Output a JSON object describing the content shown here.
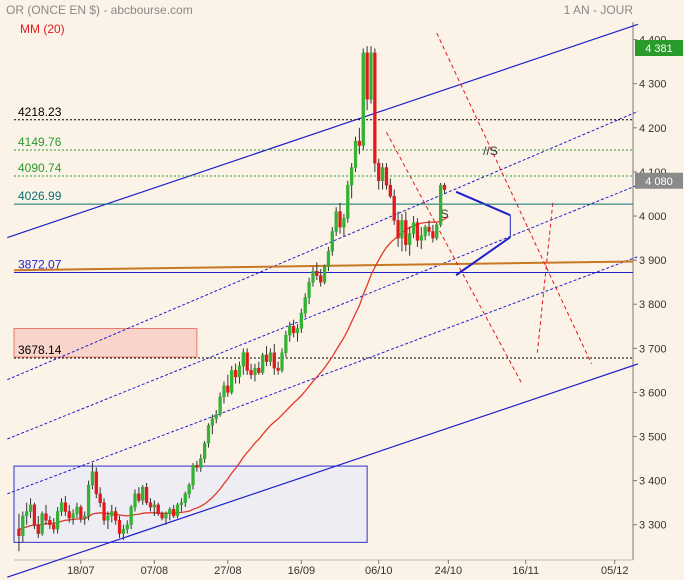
{
  "header": {
    "title": "OR (ONCE EN $) - abcbourse.com",
    "period": "1 AN - JOUR",
    "indicator": "MM (20)"
  },
  "colors": {
    "background": "#fcf3e8",
    "up": "#33b233",
    "down": "#e01a1a",
    "ma": "#e0392b",
    "channel": "#1f1fcc",
    "resistance": "#c87822",
    "current": "#2a9a2a",
    "last": "#8a8a8a"
  },
  "chart_data": {
    "type": "candlestick",
    "title": "OR (ONCE EN $) - abcbourse.com",
    "ylim": [
      3220,
      4440
    ],
    "y_ticks": [
      3300,
      3400,
      3500,
      3600,
      3700,
      3800,
      3900,
      4000,
      4100,
      4200,
      4300,
      4400
    ],
    "y_tick_labels": [
      "3 300",
      "3 400",
      "3 500",
      "3 600",
      "3 700",
      "3 800",
      "3 900",
      "4 000",
      "4 100",
      "4 200",
      "4 300",
      "4 400"
    ],
    "x_tick_labels": [
      "18/07",
      "07/08",
      "27/08",
      "16/09",
      "06/10",
      "24/10",
      "16/11",
      "05/12"
    ],
    "x_tick_index": [
      16,
      35,
      54,
      73,
      93,
      111,
      131,
      154
    ],
    "total_slots": 160,
    "price_badges": [
      {
        "label": "4 381",
        "value": 4381,
        "style": "current"
      },
      {
        "label": "4 080",
        "value": 4080,
        "style": "last"
      }
    ],
    "h_levels": [
      {
        "label": "4218.23",
        "value": 4218.23,
        "color": "#000000",
        "style": "dotted"
      },
      {
        "label": "4149.76",
        "value": 4149.76,
        "color": "#2a9a2a",
        "style": "dotted"
      },
      {
        "label": "4090.74",
        "value": 4090.74,
        "color": "#2a9a2a",
        "style": "dotted"
      },
      {
        "label": "4026.99",
        "value": 4026.99,
        "color": "#0a6f6f",
        "style": "solid"
      },
      {
        "label": "3872.07",
        "value": 3872.07,
        "color": "#2222cc",
        "style": "solid"
      },
      {
        "label": "3678.14",
        "value": 3678.14,
        "color": "#000000",
        "style": "dotted"
      }
    ],
    "annotations": [
      "//S",
      "S"
    ],
    "series": [
      {
        "name": "candles",
        "ohlc": [
          [
            3290,
            3325,
            3240,
            3275
          ],
          [
            3275,
            3330,
            3260,
            3320
          ],
          [
            3320,
            3350,
            3300,
            3330
          ],
          [
            3330,
            3360,
            3315,
            3345
          ],
          [
            3345,
            3350,
            3290,
            3300
          ],
          [
            3300,
            3320,
            3270,
            3280
          ],
          [
            3280,
            3330,
            3275,
            3325
          ],
          [
            3325,
            3345,
            3300,
            3310
          ],
          [
            3310,
            3320,
            3290,
            3300
          ],
          [
            3300,
            3315,
            3280,
            3290
          ],
          [
            3290,
            3340,
            3280,
            3330
          ],
          [
            3330,
            3360,
            3320,
            3350
          ],
          [
            3350,
            3365,
            3320,
            3330
          ],
          [
            3330,
            3345,
            3305,
            3315
          ],
          [
            3315,
            3335,
            3300,
            3325
          ],
          [
            3325,
            3350,
            3315,
            3340
          ],
          [
            3340,
            3345,
            3305,
            3315
          ],
          [
            3315,
            3330,
            3300,
            3320
          ],
          [
            3320,
            3400,
            3310,
            3390
          ],
          [
            3390,
            3440,
            3380,
            3420
          ],
          [
            3420,
            3430,
            3360,
            3370
          ],
          [
            3370,
            3385,
            3340,
            3350
          ],
          [
            3350,
            3360,
            3300,
            3310
          ],
          [
            3310,
            3330,
            3290,
            3320
          ],
          [
            3320,
            3345,
            3305,
            3330
          ],
          [
            3330,
            3340,
            3300,
            3310
          ],
          [
            3310,
            3320,
            3270,
            3280
          ],
          [
            3280,
            3300,
            3265,
            3290
          ],
          [
            3290,
            3310,
            3280,
            3300
          ],
          [
            3300,
            3345,
            3290,
            3340
          ],
          [
            3340,
            3380,
            3330,
            3370
          ],
          [
            3370,
            3385,
            3350,
            3355
          ],
          [
            3355,
            3390,
            3345,
            3385
          ],
          [
            3385,
            3395,
            3345,
            3350
          ],
          [
            3350,
            3360,
            3330,
            3340
          ],
          [
            3340,
            3355,
            3320,
            3345
          ],
          [
            3345,
            3350,
            3320,
            3325
          ],
          [
            3325,
            3330,
            3310,
            3315
          ],
          [
            3315,
            3330,
            3300,
            3325
          ],
          [
            3325,
            3340,
            3310,
            3335
          ],
          [
            3335,
            3345,
            3315,
            3320
          ],
          [
            3320,
            3350,
            3315,
            3345
          ],
          [
            3345,
            3360,
            3330,
            3350
          ],
          [
            3350,
            3375,
            3340,
            3370
          ],
          [
            3370,
            3395,
            3360,
            3390
          ],
          [
            3390,
            3440,
            3380,
            3435
          ],
          [
            3435,
            3445,
            3420,
            3430
          ],
          [
            3430,
            3460,
            3420,
            3450
          ],
          [
            3450,
            3490,
            3440,
            3485
          ],
          [
            3485,
            3530,
            3475,
            3525
          ],
          [
            3525,
            3550,
            3505,
            3540
          ],
          [
            3540,
            3560,
            3530,
            3550
          ],
          [
            3550,
            3600,
            3545,
            3590
          ],
          [
            3590,
            3625,
            3575,
            3615
          ],
          [
            3615,
            3640,
            3590,
            3600
          ],
          [
            3600,
            3660,
            3595,
            3650
          ],
          [
            3650,
            3665,
            3620,
            3635
          ],
          [
            3635,
            3670,
            3620,
            3660
          ],
          [
            3660,
            3700,
            3640,
            3690
          ],
          [
            3690,
            3700,
            3640,
            3650
          ],
          [
            3650,
            3665,
            3630,
            3640
          ],
          [
            3640,
            3665,
            3625,
            3655
          ],
          [
            3655,
            3670,
            3640,
            3645
          ],
          [
            3645,
            3690,
            3640,
            3685
          ],
          [
            3685,
            3705,
            3660,
            3670
          ],
          [
            3670,
            3700,
            3660,
            3690
          ],
          [
            3690,
            3710,
            3640,
            3655
          ],
          [
            3655,
            3670,
            3640,
            3650
          ],
          [
            3650,
            3700,
            3645,
            3690
          ],
          [
            3690,
            3740,
            3680,
            3730
          ],
          [
            3730,
            3760,
            3715,
            3750
          ],
          [
            3750,
            3765,
            3725,
            3735
          ],
          [
            3735,
            3755,
            3715,
            3745
          ],
          [
            3745,
            3790,
            3735,
            3780
          ],
          [
            3780,
            3825,
            3770,
            3815
          ],
          [
            3815,
            3860,
            3800,
            3850
          ],
          [
            3850,
            3885,
            3840,
            3875
          ],
          [
            3875,
            3895,
            3855,
            3865
          ],
          [
            3865,
            3880,
            3840,
            3850
          ],
          [
            3850,
            3890,
            3845,
            3885
          ],
          [
            3885,
            3930,
            3875,
            3920
          ],
          [
            3920,
            3975,
            3910,
            3965
          ],
          [
            3965,
            4020,
            3955,
            4010
          ],
          [
            4010,
            4030,
            3960,
            3975
          ],
          [
            3975,
            4005,
            3955,
            3995
          ],
          [
            3995,
            4080,
            3985,
            4070
          ],
          [
            4070,
            4120,
            4040,
            4110
          ],
          [
            4110,
            4180,
            4100,
            4170
          ],
          [
            4170,
            4200,
            4140,
            4160
          ],
          [
            4160,
            4380,
            4150,
            4370
          ],
          [
            4370,
            4385,
            4240,
            4265
          ],
          [
            4265,
            4385,
            4255,
            4370
          ],
          [
            4370,
            4380,
            4100,
            4120
          ],
          [
            4120,
            4130,
            4060,
            4080
          ],
          [
            4080,
            4120,
            4060,
            4110
          ],
          [
            4110,
            4120,
            4060,
            4070
          ],
          [
            4070,
            4085,
            4040,
            4045
          ],
          [
            4045,
            4060,
            3980,
            3990
          ],
          [
            3990,
            4010,
            3930,
            3950
          ],
          [
            3950,
            4005,
            3920,
            3990
          ],
          [
            3990,
            4010,
            3920,
            3935
          ],
          [
            3935,
            3975,
            3910,
            3960
          ],
          [
            3960,
            4000,
            3950,
            3985
          ],
          [
            3985,
            3995,
            3930,
            3945
          ],
          [
            3945,
            3975,
            3925,
            3955
          ],
          [
            3955,
            3980,
            3945,
            3975
          ],
          [
            3975,
            3990,
            3955,
            3965
          ],
          [
            3965,
            3980,
            3940,
            3950
          ],
          [
            3950,
            3985,
            3945,
            3980
          ],
          [
            3980,
            4075,
            3975,
            4070
          ],
          [
            4070,
            4075,
            4050,
            4060
          ]
        ]
      },
      {
        "name": "MM (20)",
        "values": [
          3290,
          3292,
          3295,
          3298,
          3299,
          3299,
          3301,
          3302,
          3303,
          3303,
          3305,
          3308,
          3310,
          3311,
          3312,
          3313,
          3313,
          3313,
          3318,
          3324,
          3326,
          3327,
          3326,
          3325,
          3325,
          3324,
          3322,
          3321,
          3320,
          3321,
          3323,
          3324,
          3326,
          3327,
          3327,
          3327,
          3327,
          3326,
          3326,
          3326,
          3326,
          3327,
          3328,
          3329,
          3331,
          3335,
          3338,
          3342,
          3347,
          3354,
          3362,
          3371,
          3381,
          3393,
          3404,
          3417,
          3428,
          3440,
          3453,
          3464,
          3474,
          3485,
          3494,
          3505,
          3515,
          3525,
          3533,
          3540,
          3549,
          3558,
          3567,
          3576,
          3584,
          3593,
          3603,
          3614,
          3625,
          3635,
          3645,
          3656,
          3668,
          3681,
          3696,
          3710,
          3724,
          3741,
          3760,
          3779,
          3797,
          3822,
          3843,
          3866,
          3884,
          3900,
          3916,
          3929,
          3939,
          3947,
          3954,
          3962,
          3968,
          3974,
          3978,
          3981,
          3984,
          3985,
          3986,
          3986,
          3986,
          3988,
          3993,
          3998
        ]
      }
    ]
  }
}
